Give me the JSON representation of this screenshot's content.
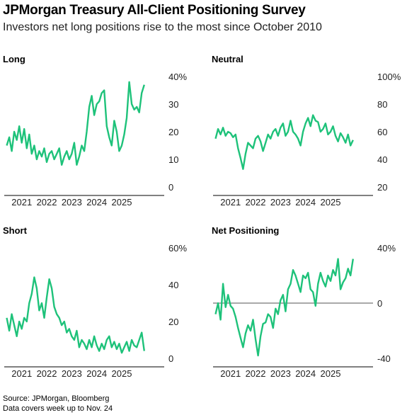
{
  "header": {
    "title": "JPMorgan Treasury All-Client Positioning Survey",
    "subtitle": "Investors net long positions rise to the most since October 2010"
  },
  "footer": {
    "source": "Source: JPMorgan, Bloomberg",
    "note": "Data covers week up to Nov. 24"
  },
  "colors": {
    "line": "#1ec27a",
    "axis": "#000000",
    "zero": "#555555"
  },
  "chart_data": [
    {
      "type": "line",
      "title": "Long",
      "x_tick_labels": [
        "2021",
        "2022",
        "2023",
        "2024",
        "2025"
      ],
      "y_tick_labels": [
        "40%",
        "30",
        "20",
        "10",
        "0"
      ],
      "xlim": [
        2020.3,
        2026.7
      ],
      "ylim": [
        0,
        40
      ],
      "series": [
        {
          "x": [
            2020.4,
            2020.5,
            2020.6,
            2020.7,
            2020.8,
            2020.9,
            2021.0,
            2021.1,
            2021.2,
            2021.3,
            2021.4,
            2021.5,
            2021.6,
            2021.7,
            2021.8,
            2021.9,
            2022.0,
            2022.1,
            2022.2,
            2022.3,
            2022.4,
            2022.5,
            2022.6,
            2022.7,
            2022.8,
            2022.9,
            2023.0,
            2023.1,
            2023.2,
            2023.3,
            2023.4,
            2023.5,
            2023.6,
            2023.7,
            2023.8,
            2023.9,
            2024.0,
            2024.1,
            2024.2,
            2024.3,
            2024.4,
            2024.5,
            2024.6,
            2024.7,
            2024.8,
            2024.9,
            2025.0,
            2025.1,
            2025.2,
            2025.3,
            2025.4,
            2025.5,
            2025.6,
            2025.7,
            2025.8,
            2025.9
          ],
          "y": [
            15,
            18,
            13,
            20,
            17,
            22,
            16,
            21,
            14,
            19,
            12,
            15,
            10,
            13,
            11,
            14,
            9,
            12,
            13,
            10,
            12,
            14,
            8,
            11,
            13,
            10,
            12,
            16,
            8,
            11,
            15,
            13,
            20,
            29,
            33,
            26,
            30,
            31,
            34,
            35,
            22,
            18,
            15,
            24,
            20,
            13,
            15,
            19,
            25,
            38,
            30,
            28,
            29,
            27,
            34,
            37
          ]
        }
      ]
    },
    {
      "type": "line",
      "title": "Neutral",
      "x_tick_labels": [
        "2021",
        "2022",
        "2023",
        "2024",
        "2025"
      ],
      "y_tick_labels": [
        "100%",
        "80",
        "60",
        "40",
        "20"
      ],
      "xlim": [
        2020.3,
        2026.7
      ],
      "ylim": [
        20,
        100
      ],
      "series": [
        {
          "x": [
            2020.4,
            2020.5,
            2020.6,
            2020.7,
            2020.8,
            2020.9,
            2021.0,
            2021.1,
            2021.2,
            2021.3,
            2021.4,
            2021.5,
            2021.6,
            2021.7,
            2021.8,
            2021.9,
            2022.0,
            2022.1,
            2022.2,
            2022.3,
            2022.4,
            2022.5,
            2022.6,
            2022.7,
            2022.8,
            2022.9,
            2023.0,
            2023.1,
            2023.2,
            2023.3,
            2023.4,
            2023.5,
            2023.6,
            2023.7,
            2023.8,
            2023.9,
            2024.0,
            2024.1,
            2024.2,
            2024.3,
            2024.4,
            2024.5,
            2024.6,
            2024.7,
            2024.8,
            2024.9,
            2025.0,
            2025.1,
            2025.2,
            2025.3,
            2025.4,
            2025.5,
            2025.6,
            2025.7,
            2025.8,
            2025.9
          ],
          "y": [
            55,
            62,
            58,
            63,
            57,
            60,
            59,
            56,
            58,
            48,
            41,
            33,
            44,
            52,
            50,
            48,
            55,
            57,
            53,
            46,
            52,
            58,
            55,
            60,
            62,
            57,
            63,
            66,
            57,
            60,
            68,
            60,
            58,
            55,
            50,
            60,
            66,
            70,
            64,
            72,
            68,
            67,
            60,
            62,
            66,
            58,
            60,
            64,
            57,
            53,
            59,
            56,
            52,
            58,
            50,
            54
          ]
        }
      ]
    },
    {
      "type": "line",
      "title": "Short",
      "x_tick_labels": [
        "2021",
        "2022",
        "2023",
        "2024",
        "2025"
      ],
      "y_tick_labels": [
        "60%",
        "40",
        "20",
        "0"
      ],
      "xlim": [
        2020.3,
        2026.7
      ],
      "ylim": [
        0,
        60
      ],
      "series": [
        {
          "x": [
            2020.4,
            2020.5,
            2020.6,
            2020.7,
            2020.8,
            2020.9,
            2021.0,
            2021.1,
            2021.2,
            2021.3,
            2021.4,
            2021.5,
            2021.6,
            2021.7,
            2021.8,
            2021.9,
            2022.0,
            2022.1,
            2022.2,
            2022.3,
            2022.4,
            2022.5,
            2022.6,
            2022.7,
            2022.8,
            2022.9,
            2023.0,
            2023.1,
            2023.2,
            2023.3,
            2023.4,
            2023.5,
            2023.6,
            2023.7,
            2023.8,
            2023.9,
            2024.0,
            2024.1,
            2024.2,
            2024.3,
            2024.4,
            2024.5,
            2024.6,
            2024.7,
            2024.8,
            2024.9,
            2025.0,
            2025.1,
            2025.2,
            2025.3,
            2025.4,
            2025.5,
            2025.6,
            2025.7,
            2025.8,
            2025.9
          ],
          "y": [
            22,
            15,
            24,
            18,
            12,
            20,
            16,
            22,
            20,
            30,
            35,
            44,
            38,
            26,
            30,
            22,
            33,
            43,
            38,
            28,
            24,
            22,
            18,
            20,
            14,
            16,
            12,
            10,
            15,
            6,
            10,
            8,
            5,
            10,
            6,
            12,
            7,
            4,
            8,
            5,
            10,
            12,
            6,
            9,
            5,
            8,
            3,
            6,
            9,
            4,
            10,
            7,
            6,
            10,
            14,
            4
          ]
        }
      ]
    },
    {
      "type": "line",
      "title": "Net Positioning",
      "x_tick_labels": [
        "2021",
        "2022",
        "2023",
        "2024",
        "2025"
      ],
      "y_tick_labels": [
        "40%",
        "0",
        "-40"
      ],
      "xlim": [
        2020.3,
        2026.7
      ],
      "ylim": [
        -40,
        40
      ],
      "series": [
        {
          "x": [
            2020.4,
            2020.5,
            2020.6,
            2020.7,
            2020.8,
            2020.9,
            2021.0,
            2021.1,
            2021.2,
            2021.3,
            2021.4,
            2021.5,
            2021.6,
            2021.7,
            2021.8,
            2021.9,
            2022.0,
            2022.1,
            2022.2,
            2022.3,
            2022.4,
            2022.5,
            2022.6,
            2022.7,
            2022.8,
            2022.9,
            2023.0,
            2023.1,
            2023.2,
            2023.3,
            2023.4,
            2023.5,
            2023.6,
            2023.7,
            2023.8,
            2023.9,
            2024.0,
            2024.1,
            2024.2,
            2024.3,
            2024.4,
            2024.5,
            2024.6,
            2024.7,
            2024.8,
            2024.9,
            2025.0,
            2025.1,
            2025.2,
            2025.3,
            2025.4,
            2025.5,
            2025.6,
            2025.7,
            2025.8,
            2025.9
          ],
          "y": [
            -8,
            0,
            -12,
            14,
            -3,
            6,
            -2,
            -4,
            -10,
            -18,
            -25,
            -32,
            -22,
            -16,
            -20,
            -12,
            -26,
            -38,
            -24,
            -15,
            -14,
            -8,
            -10,
            -18,
            -4,
            -8,
            2,
            6,
            -6,
            10,
            14,
            24,
            20,
            14,
            8,
            20,
            18,
            22,
            10,
            8,
            -2,
            14,
            22,
            16,
            12,
            20,
            16,
            24,
            20,
            32,
            10,
            15,
            18,
            25,
            20,
            32
          ]
        }
      ]
    }
  ]
}
